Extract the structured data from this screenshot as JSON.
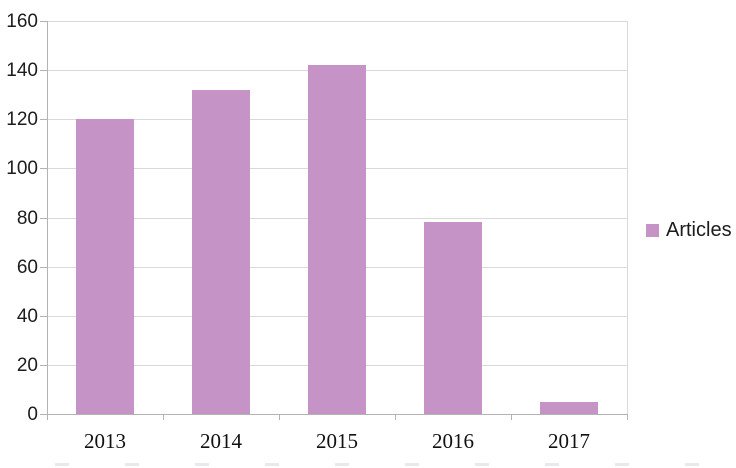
{
  "chart_data": {
    "type": "bar",
    "title": "",
    "categories": [
      "2013",
      "2014",
      "2015",
      "2016",
      "2017"
    ],
    "series": [
      {
        "name": "Articles",
        "values": [
          120,
          132,
          142,
          78,
          5
        ]
      }
    ],
    "xlabel": "",
    "ylabel": "",
    "ylim": [
      0,
      160
    ],
    "ytick_step": 20,
    "yticks": [
      "0",
      "20",
      "40",
      "60",
      "80",
      "100",
      "120",
      "140",
      "160"
    ],
    "grid": "horizontal",
    "legend_position": "right",
    "colors": {
      "bar": "#c693c6",
      "gridline": "#d9d9d9",
      "axis": "#b3b3b3",
      "y_label_text": "#1c1c1c",
      "x_label_text": "#111111"
    }
  },
  "legend": {
    "label": "Articles"
  }
}
